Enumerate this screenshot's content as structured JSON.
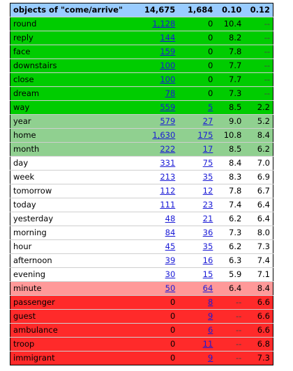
{
  "header": {
    "label": "objects of \"come/arrive\"",
    "col1": "14,675",
    "col2": "1,684",
    "col3": "0.10",
    "col4": "0.12"
  },
  "colors": {
    "header": "#99ccff",
    "green": "#00cc00",
    "light_green": "#90d090",
    "white": "#ffffff",
    "pink": "#ff9999",
    "red": "#ff2a2a"
  },
  "rows": [
    {
      "word": "round",
      "c1": "1,128",
      "c1_link": true,
      "c2": "0",
      "c2_link": false,
      "c3": "10.4",
      "c4": "--",
      "band": "green"
    },
    {
      "word": "reply",
      "c1": "144",
      "c1_link": true,
      "c2": "0",
      "c2_link": false,
      "c3": "8.2",
      "c4": "--",
      "band": "green"
    },
    {
      "word": "face",
      "c1": "159",
      "c1_link": true,
      "c2": "0",
      "c2_link": false,
      "c3": "7.8",
      "c4": "--",
      "band": "green"
    },
    {
      "word": "downstairs",
      "c1": "100",
      "c1_link": true,
      "c2": "0",
      "c2_link": false,
      "c3": "7.7",
      "c4": "--",
      "band": "green"
    },
    {
      "word": "close",
      "c1": "100",
      "c1_link": true,
      "c2": "0",
      "c2_link": false,
      "c3": "7.7",
      "c4": "--",
      "band": "green"
    },
    {
      "word": "dream",
      "c1": "78",
      "c1_link": true,
      "c2": "0",
      "c2_link": false,
      "c3": "7.3",
      "c4": "--",
      "band": "green"
    },
    {
      "word": "way",
      "c1": "559",
      "c1_link": true,
      "c2": "5",
      "c2_link": true,
      "c3": "8.5",
      "c4": "2.2",
      "band": "green"
    },
    {
      "word": "year",
      "c1": "579",
      "c1_link": true,
      "c2": "27",
      "c2_link": true,
      "c3": "9.0",
      "c4": "5.2",
      "band": "light_green"
    },
    {
      "word": "home",
      "c1": "1,630",
      "c1_link": true,
      "c2": "175",
      "c2_link": true,
      "c3": "10.8",
      "c4": "8.4",
      "band": "light_green"
    },
    {
      "word": "month",
      "c1": "222",
      "c1_link": true,
      "c2": "17",
      "c2_link": true,
      "c3": "8.5",
      "c4": "6.2",
      "band": "light_green"
    },
    {
      "word": "day",
      "c1": "331",
      "c1_link": true,
      "c2": "75",
      "c2_link": true,
      "c3": "8.4",
      "c4": "7.0",
      "band": "white"
    },
    {
      "word": "week",
      "c1": "213",
      "c1_link": true,
      "c2": "35",
      "c2_link": true,
      "c3": "8.3",
      "c4": "6.9",
      "band": "white"
    },
    {
      "word": "tomorrow",
      "c1": "112",
      "c1_link": true,
      "c2": "12",
      "c2_link": true,
      "c3": "7.8",
      "c4": "6.7",
      "band": "white"
    },
    {
      "word": "today",
      "c1": "111",
      "c1_link": true,
      "c2": "23",
      "c2_link": true,
      "c3": "7.4",
      "c4": "6.4",
      "band": "white"
    },
    {
      "word": "yesterday",
      "c1": "48",
      "c1_link": true,
      "c2": "21",
      "c2_link": true,
      "c3": "6.2",
      "c4": "6.4",
      "band": "white"
    },
    {
      "word": "morning",
      "c1": "84",
      "c1_link": true,
      "c2": "36",
      "c2_link": true,
      "c3": "7.3",
      "c4": "8.0",
      "band": "white"
    },
    {
      "word": "hour",
      "c1": "45",
      "c1_link": true,
      "c2": "35",
      "c2_link": true,
      "c3": "6.2",
      "c4": "7.3",
      "band": "white"
    },
    {
      "word": "afternoon",
      "c1": "39",
      "c1_link": true,
      "c2": "16",
      "c2_link": true,
      "c3": "6.3",
      "c4": "7.4",
      "band": "white"
    },
    {
      "word": "evening",
      "c1": "30",
      "c1_link": true,
      "c2": "15",
      "c2_link": true,
      "c3": "5.9",
      "c4": "7.1",
      "band": "white"
    },
    {
      "word": "minute",
      "c1": "50",
      "c1_link": true,
      "c2": "64",
      "c2_link": true,
      "c3": "6.4",
      "c4": "8.4",
      "band": "pink"
    },
    {
      "word": "passenger",
      "c1": "0",
      "c1_link": false,
      "c2": "8",
      "c2_link": true,
      "c3": "--",
      "c4": "6.6",
      "band": "red"
    },
    {
      "word": "guest",
      "c1": "0",
      "c1_link": false,
      "c2": "9",
      "c2_link": true,
      "c3": "--",
      "c4": "6.6",
      "band": "red"
    },
    {
      "word": "ambulance",
      "c1": "0",
      "c1_link": false,
      "c2": "6",
      "c2_link": true,
      "c3": "--",
      "c4": "6.6",
      "band": "red"
    },
    {
      "word": "troop",
      "c1": "0",
      "c1_link": false,
      "c2": "11",
      "c2_link": true,
      "c3": "--",
      "c4": "6.8",
      "band": "red"
    },
    {
      "word": "immigrant",
      "c1": "0",
      "c1_link": false,
      "c2": "9",
      "c2_link": true,
      "c3": "--",
      "c4": "7.3",
      "band": "red"
    }
  ]
}
